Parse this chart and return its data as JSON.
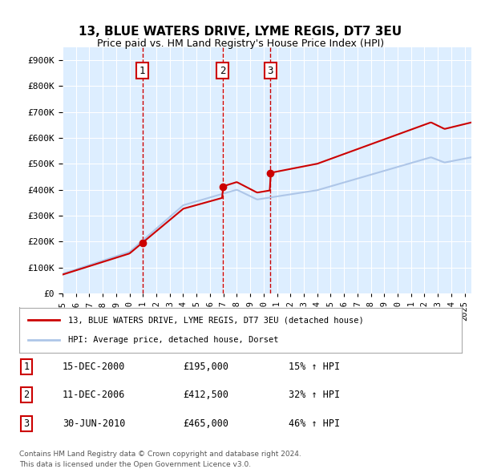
{
  "title": "13, BLUE WATERS DRIVE, LYME REGIS, DT7 3EU",
  "subtitle": "Price paid vs. HM Land Registry's House Price Index (HPI)",
  "ylabel_ticks": [
    "£0",
    "£100K",
    "£200K",
    "£300K",
    "£400K",
    "£500K",
    "£600K",
    "£700K",
    "£800K",
    "£900K"
  ],
  "ytick_values": [
    0,
    100000,
    200000,
    300000,
    400000,
    500000,
    600000,
    700000,
    800000,
    900000
  ],
  "ylim": [
    0,
    950000
  ],
  "xlim_start": 1995.0,
  "xlim_end": 2025.5,
  "sale_dates": [
    2000.958,
    2006.942,
    2010.5
  ],
  "sale_prices": [
    195000,
    412500,
    465000
  ],
  "sale_labels": [
    "1",
    "2",
    "3"
  ],
  "legend_line1": "13, BLUE WATERS DRIVE, LYME REGIS, DT7 3EU (detached house)",
  "legend_line2": "HPI: Average price, detached house, Dorset",
  "table_rows": [
    [
      "1",
      "15-DEC-2000",
      "£195,000",
      "15% ↑ HPI"
    ],
    [
      "2",
      "11-DEC-2006",
      "£412,500",
      "32% ↑ HPI"
    ],
    [
      "3",
      "30-JUN-2010",
      "£465,000",
      "46% ↑ HPI"
    ]
  ],
  "footer_line1": "Contains HM Land Registry data © Crown copyright and database right 2024.",
  "footer_line2": "This data is licensed under the Open Government Licence v3.0.",
  "hpi_color": "#aec6e8",
  "sale_color": "#cc0000",
  "background_color": "#ddeeff",
  "grid_color": "#ffffff",
  "vline_color": "#cc0000"
}
